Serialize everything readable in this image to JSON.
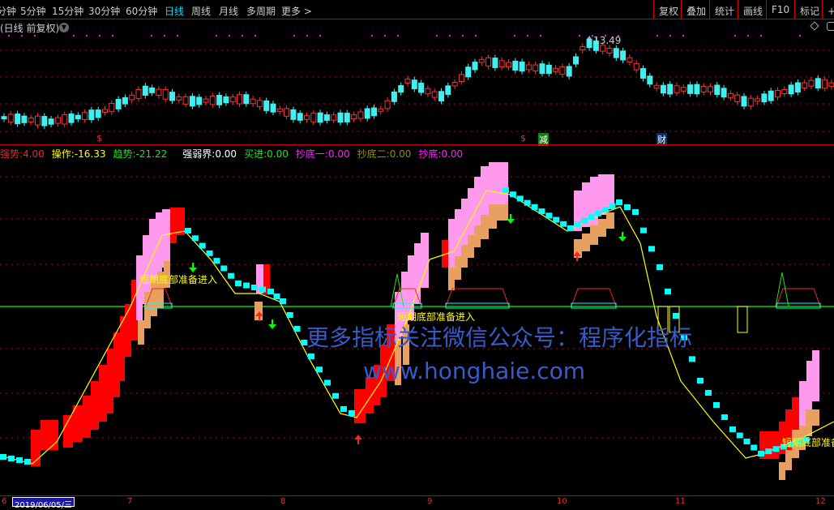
{
  "period_tabs": [
    {
      "label": "分钟",
      "active": false
    },
    {
      "label": "5分钟",
      "active": false
    },
    {
      "label": "15分钟",
      "active": false
    },
    {
      "label": "30分钟",
      "active": false
    },
    {
      "label": "60分钟",
      "active": false
    },
    {
      "label": "日线",
      "active": true
    },
    {
      "label": "周线",
      "active": false
    },
    {
      "label": "月线",
      "active": false
    },
    {
      "label": "多周期",
      "active": false
    },
    {
      "label": "更多 >",
      "active": false
    }
  ],
  "toolbar": [
    "复权",
    "叠加",
    "统计",
    "画线",
    "F10",
    "标记",
    "+自"
  ],
  "chart_title": "(日线 前复权)",
  "price_high_label": "13.49",
  "event_markers": {
    "dollar1": "$",
    "dollar2": "$",
    "reduce": "减",
    "finance": "财"
  },
  "indicators": [
    {
      "name": "强势",
      "value": "4.00",
      "color": "#ff2020"
    },
    {
      "name": "操作",
      "value": "-16.33",
      "color": "#ffff00"
    },
    {
      "name": "趋势",
      "value": "-21.22",
      "color": "#20e020"
    },
    {
      "name": "强弱界",
      "value": "0.00",
      "color": "#ffffff"
    },
    {
      "name": "买进",
      "value": "0.00",
      "color": "#20e020"
    },
    {
      "name": "抄底一",
      "value": "0.00",
      "color": "#ff20ff"
    },
    {
      "name": "抄底二",
      "value": "0.00",
      "color": "#909000"
    },
    {
      "name": "抄底",
      "value": "0.00",
      "color": "#ff20ff"
    }
  ],
  "signal_label": "短期底部准备进入",
  "watermark": {
    "line1": "更多指标关注微信公众号：程序化指标",
    "line2": "www.honghaie.com"
  },
  "axis": {
    "ticks": [
      "6",
      "7",
      "8",
      "9",
      "10",
      "11",
      "12"
    ],
    "cursor_date": "2019/06/05/三"
  },
  "colors": {
    "up": "#ff3030",
    "down": "#40f0f0",
    "strong": "#ff0000",
    "pink": "#ff99ee",
    "tan": "#e8a060",
    "cyan": "#00ffff",
    "zero_line": "#00ff00",
    "grid": "#c00000"
  }
}
